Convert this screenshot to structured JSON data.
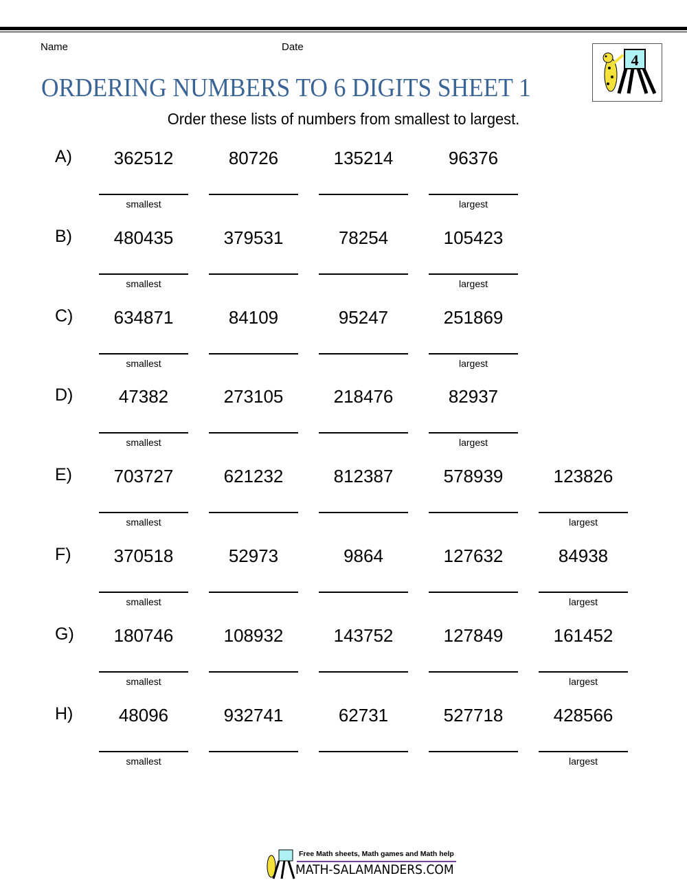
{
  "header": {
    "name_label": "Name",
    "date_label": "Date",
    "title": "ORDERING NUMBERS TO 6 DIGITS SHEET 1",
    "instructions": "Order these lists of numbers from smallest to largest."
  },
  "hints": {
    "smallest": "smallest",
    "largest": "largest"
  },
  "questions": [
    {
      "label": "A)",
      "numbers": [
        "362512",
        "80726",
        "135214",
        "96376"
      ]
    },
    {
      "label": "B)",
      "numbers": [
        "480435",
        "379531",
        "78254",
        "105423"
      ]
    },
    {
      "label": "C)",
      "numbers": [
        "634871",
        "84109",
        "95247",
        "251869"
      ]
    },
    {
      "label": "D)",
      "numbers": [
        "47382",
        "273105",
        "218476",
        "82937"
      ]
    },
    {
      "label": "E)",
      "numbers": [
        "703727",
        "621232",
        "812387",
        "578939",
        "123826"
      ]
    },
    {
      "label": "F)",
      "numbers": [
        "370518",
        "52973",
        "9864",
        "127632",
        "84938"
      ]
    },
    {
      "label": "G)",
      "numbers": [
        "180746",
        "108932",
        "143752",
        "127849",
        "161452"
      ]
    },
    {
      "label": "H)",
      "numbers": [
        "48096",
        "932741",
        "62731",
        "527718",
        "428566"
      ]
    }
  ],
  "footer": {
    "tagline": "Free Math sheets, Math games and Math help",
    "site": "MATH-SALAMANDERS.COM"
  },
  "colors": {
    "title": "#3b6496",
    "footer_bar": "#7b3fa0"
  }
}
